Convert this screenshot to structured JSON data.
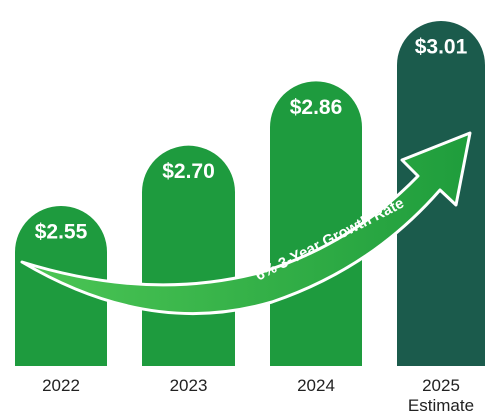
{
  "chart_data": {
    "type": "bar",
    "categories": [
      "2022",
      "2023",
      "2024",
      "2025 Estimate"
    ],
    "values": [
      2.55,
      2.7,
      2.86,
      3.01
    ],
    "value_labels": [
      "$2.55",
      "$2.70",
      "$2.86",
      "$3.01"
    ],
    "colors": [
      "#1e9b3e",
      "#1e9b3e",
      "#1e9b3e",
      "#1b5b4c"
    ],
    "annotation": "6% 3-Year Growth Rate"
  }
}
